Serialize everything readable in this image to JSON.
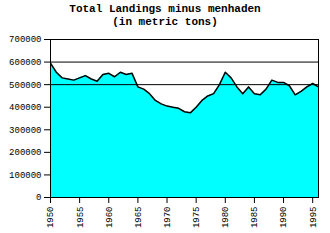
{
  "chart_data": {
    "type": "area",
    "title": "Total Landings minus menhaden\n(in metric tons)",
    "x": [
      1950,
      1951,
      1952,
      1953,
      1954,
      1955,
      1956,
      1957,
      1958,
      1959,
      1960,
      1961,
      1962,
      1963,
      1964,
      1965,
      1966,
      1967,
      1968,
      1969,
      1970,
      1971,
      1972,
      1973,
      1974,
      1975,
      1976,
      1977,
      1978,
      1979,
      1980,
      1981,
      1982,
      1983,
      1984,
      1985,
      1986,
      1987,
      1988,
      1989,
      1990,
      1991,
      1992,
      1993,
      1994,
      1995,
      1996
    ],
    "values": [
      595000,
      555000,
      530000,
      525000,
      520000,
      530000,
      540000,
      525000,
      515000,
      545000,
      550000,
      535000,
      555000,
      545000,
      550000,
      490000,
      480000,
      460000,
      430000,
      415000,
      405000,
      400000,
      395000,
      380000,
      375000,
      400000,
      430000,
      450000,
      460000,
      500000,
      555000,
      530000,
      490000,
      460000,
      490000,
      460000,
      455000,
      480000,
      520000,
      510000,
      510000,
      495000,
      455000,
      470000,
      490000,
      505000,
      490000
    ],
    "color": "#00FFFF",
    "hlines": [
      600000,
      500000
    ],
    "xlim": [
      1950,
      1996
    ],
    "xticks": [
      1950,
      1955,
      1960,
      1965,
      1970,
      1975,
      1980,
      1985,
      1990,
      1995
    ],
    "ylim": [
      0,
      700000
    ],
    "yticks": [
      0,
      100000,
      200000,
      300000,
      400000,
      500000,
      600000,
      700000
    ],
    "grid": false
  }
}
